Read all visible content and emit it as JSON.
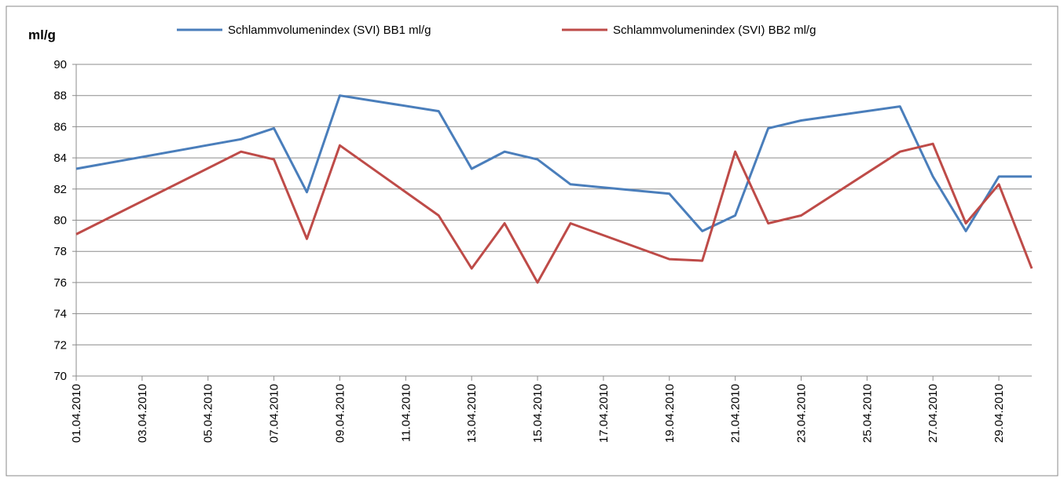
{
  "chart_data": {
    "type": "line",
    "y_label": "ml/g",
    "x": [
      "01.04.2010",
      "06.04.2010",
      "07.04.2010",
      "08.04.2010",
      "09.04.2010",
      "12.04.2010",
      "13.04.2010",
      "14.04.2010",
      "15.04.2010",
      "16.04.2010",
      "19.04.2010",
      "20.04.2010",
      "21.04.2010",
      "22.04.2010",
      "23.04.2010",
      "26.04.2010",
      "27.04.2010",
      "28.04.2010",
      "29.04.2010",
      "30.04.2010"
    ],
    "series": [
      {
        "name": "Schlammvolumenindex (SVI) BB1 ml/g",
        "color": "#4a7ebb",
        "values": [
          83.3,
          85.2,
          85.9,
          81.8,
          88.0,
          87.0,
          83.3,
          84.4,
          83.9,
          82.3,
          81.7,
          79.3,
          80.3,
          85.9,
          86.4,
          87.3,
          82.8,
          79.3,
          82.8,
          82.8
        ]
      },
      {
        "name": "Schlammvolumenindex (SVI) BB2 ml/g",
        "color": "#be4b48",
        "values": [
          79.1,
          84.4,
          83.9,
          78.8,
          84.8,
          80.3,
          76.9,
          79.8,
          76.0,
          79.8,
          77.5,
          77.4,
          84.4,
          79.8,
          80.3,
          84.4,
          84.9,
          79.8,
          82.3,
          76.9
        ]
      }
    ],
    "xlim": [
      "01.04.2010",
      "30.04.2010"
    ],
    "xticks": [
      "01.04.2010",
      "03.04.2010",
      "05.04.2010",
      "07.04.2010",
      "09.04.2010",
      "11.04.2010",
      "13.04.2010",
      "15.04.2010",
      "17.04.2010",
      "19.04.2010",
      "21.04.2010",
      "23.04.2010",
      "25.04.2010",
      "27.04.2010",
      "29.04.2010"
    ],
    "ylim": [
      70,
      90
    ],
    "yticks": [
      70,
      72,
      74,
      76,
      78,
      80,
      82,
      84,
      86,
      88,
      90
    ],
    "grid": true,
    "legend": "top"
  }
}
